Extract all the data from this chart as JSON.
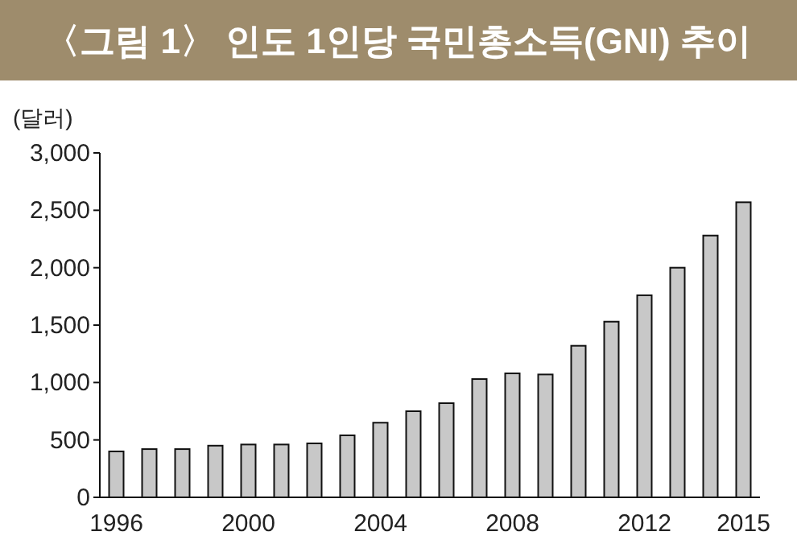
{
  "chart_data": {
    "type": "bar",
    "title": "〈그림 1〉 인도 1인당 국민총소득(GNI) 추이",
    "ylabel": "(달러)",
    "categories": [
      "1996",
      null,
      null,
      null,
      "2000",
      null,
      null,
      null,
      "2004",
      null,
      null,
      null,
      "2008",
      null,
      null,
      null,
      "2012",
      null,
      null,
      "2015"
    ],
    "values": [
      400,
      420,
      420,
      450,
      460,
      460,
      470,
      540,
      650,
      750,
      820,
      1030,
      1080,
      1070,
      1320,
      1530,
      1760,
      2000,
      2280,
      2570
    ],
    "color": "#c8c8c8",
    "ylim": [
      0,
      3000
    ],
    "yticks": [
      0,
      {
        "value": 500,
        "label": "500"
      },
      {
        "value": 1000,
        "label": "1,000"
      },
      {
        "value": 1500,
        "label": "1,500"
      },
      {
        "value": 2000,
        "label": "2,000"
      },
      {
        "value": 2500,
        "label": "2,500"
      },
      {
        "value": 3000,
        "label": "3,000"
      }
    ],
    "grid": false
  }
}
